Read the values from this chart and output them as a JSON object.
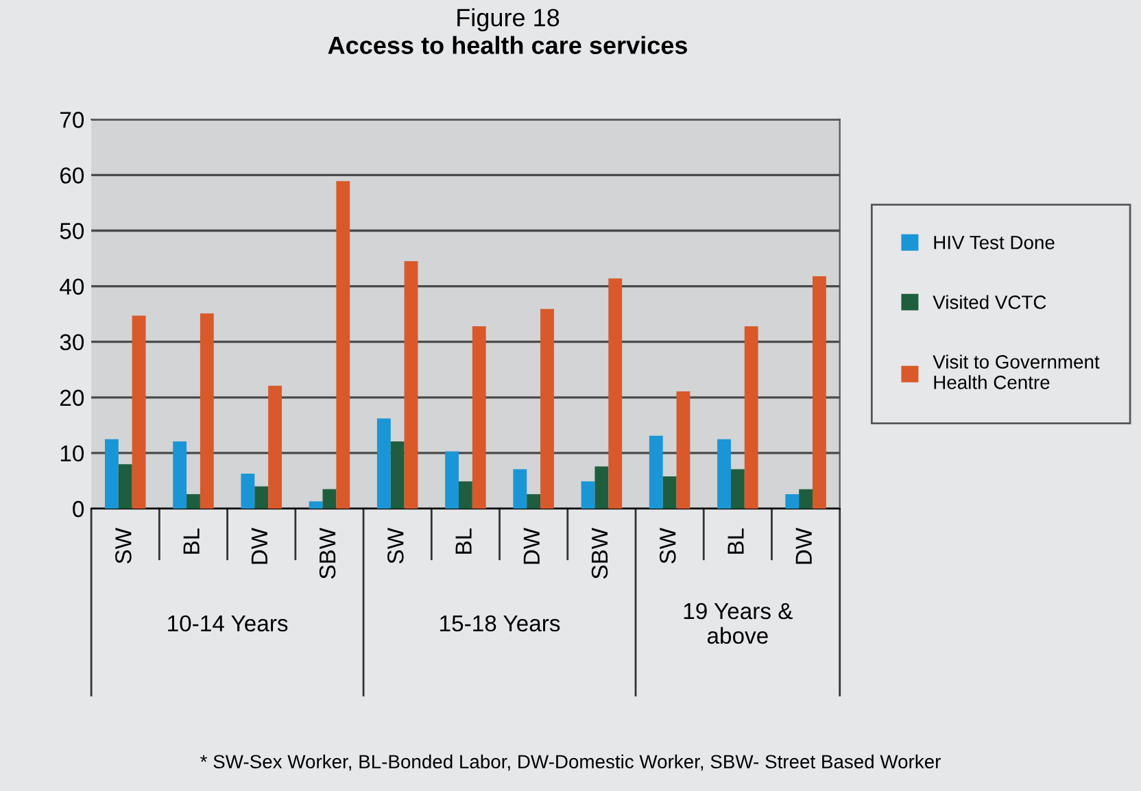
{
  "chart_data": {
    "type": "bar",
    "title": "Figure 18",
    "subtitle": "Access to health care services",
    "categories": [
      "SW",
      "BL",
      "DW",
      "SBW",
      "SW",
      "BL",
      "DW",
      "SBW",
      "SW",
      "BL",
      "DW"
    ],
    "series": [
      {
        "name": "HIV Test Done",
        "color": "#1a96d6",
        "values": [
          12.5,
          12.1,
          6.3,
          1.3,
          16.2,
          10.3,
          7.1,
          4.9,
          13.1,
          12.5,
          2.6
        ]
      },
      {
        "name": "Visited VCTC",
        "color": "#1e5e3e",
        "values": [
          8.0,
          2.6,
          4.0,
          3.5,
          12.1,
          4.9,
          2.6,
          7.6,
          5.8,
          7.1,
          3.5
        ]
      },
      {
        "name": "Visit to Government\nHealth Centre",
        "color": "#d9592a",
        "values": [
          34.7,
          35.1,
          22.1,
          58.9,
          44.5,
          32.8,
          35.9,
          41.4,
          21.1,
          32.8,
          41.8
        ]
      }
    ],
    "annotations": [
      "10-14 Years",
      "15-18 Years",
      "19 Years &\nabove",
      "* SW-Sex Worker, BL-Bonded Labor, DW-Domestic Worker, SBW- Street Based Worker"
    ],
    "ylim": [
      0,
      70
    ],
    "yticks": [
      0,
      10,
      20,
      30,
      40,
      50,
      60,
      70
    ],
    "grid": "y",
    "legend": "right"
  }
}
